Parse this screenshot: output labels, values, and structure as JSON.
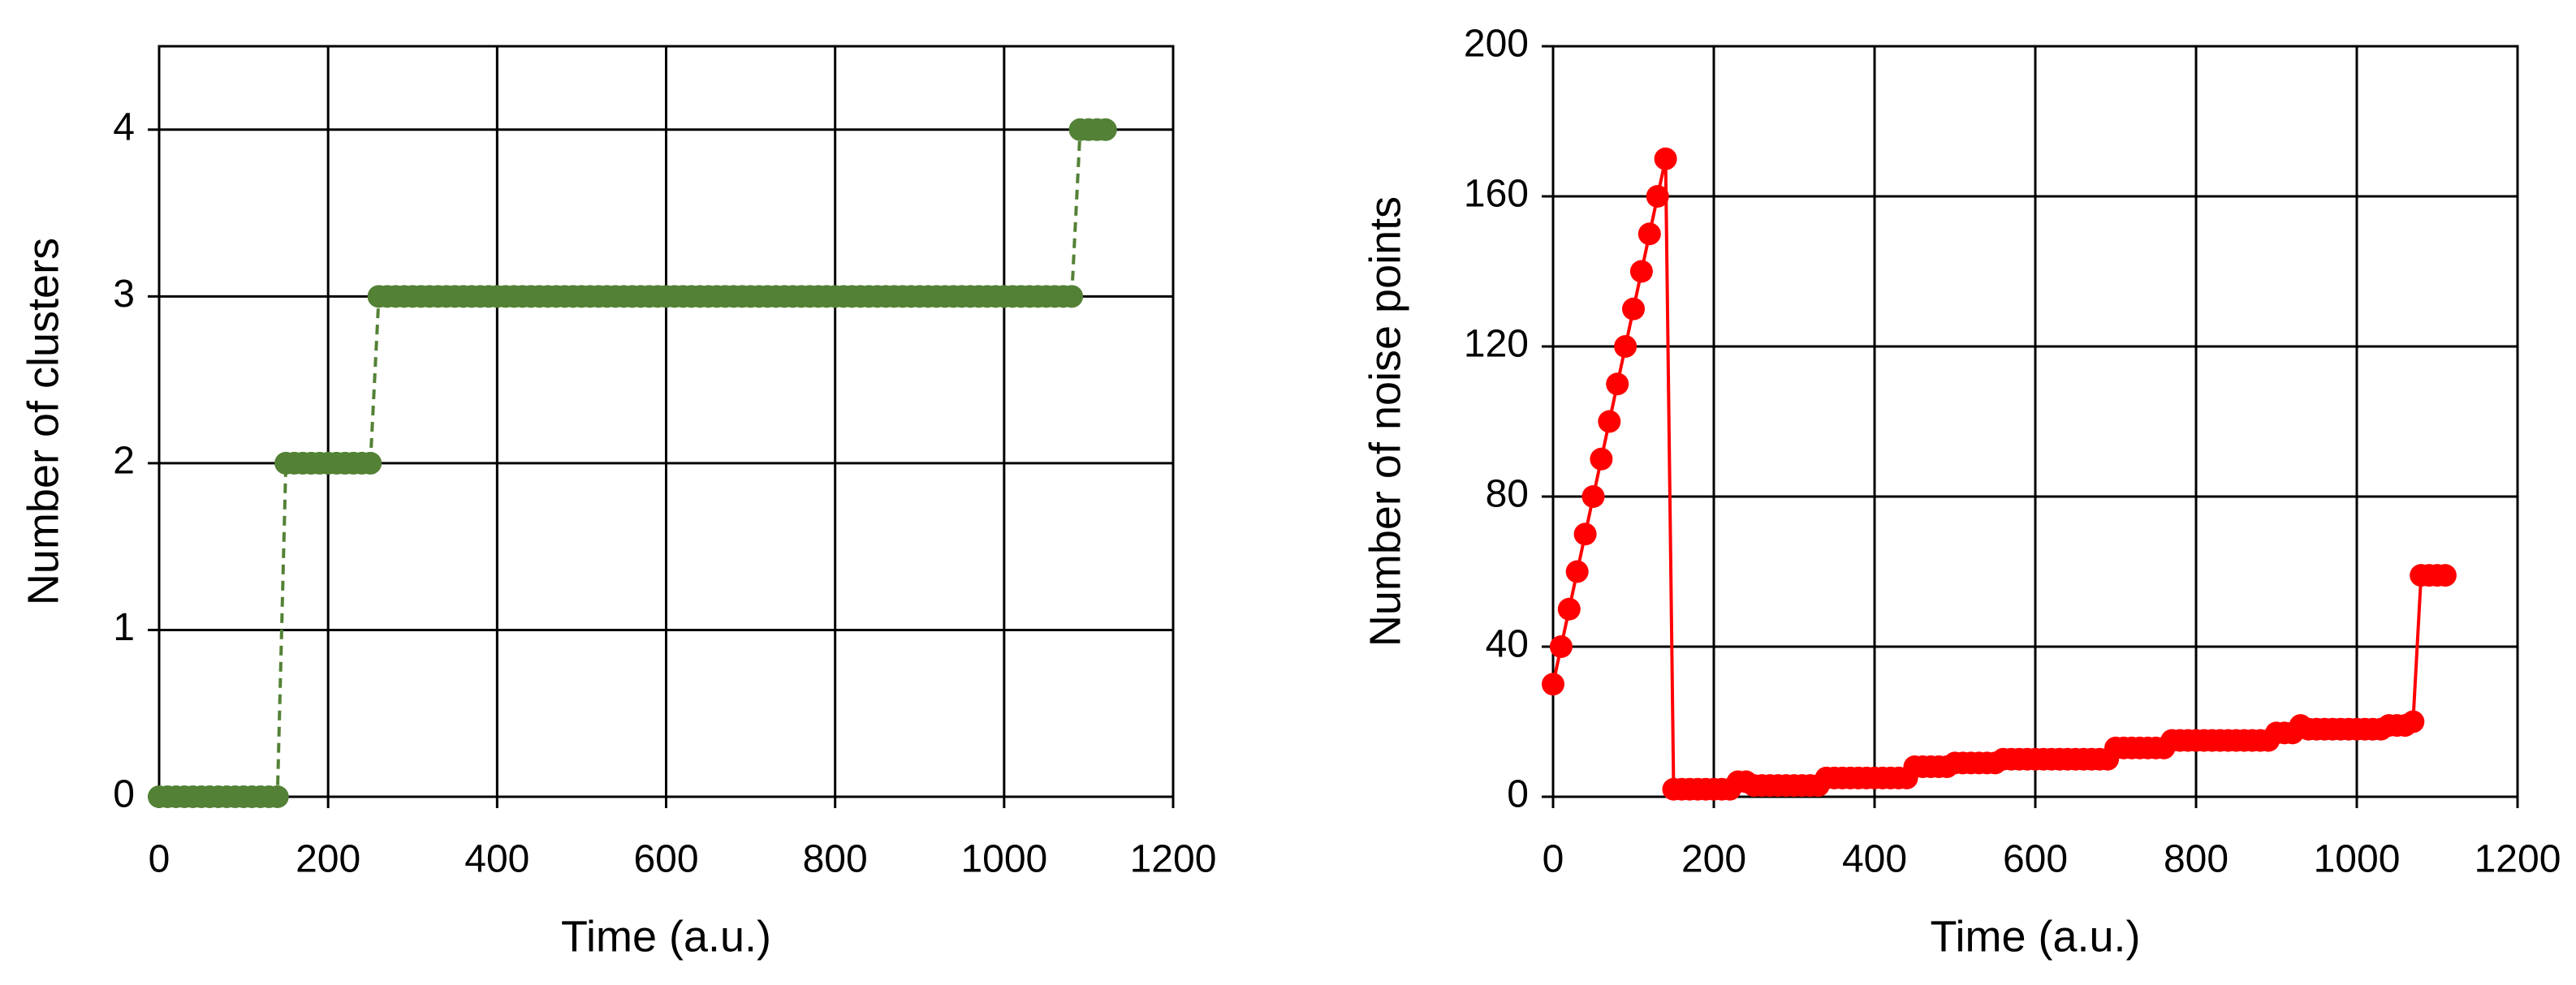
{
  "chart_data": [
    {
      "type": "line",
      "x_label": "Time (a.u.)",
      "y_label": "Number of clusters",
      "color": "#538135",
      "line_style": "dashed",
      "grid": true,
      "xlim": [
        0,
        1200
      ],
      "xticks": [
        0,
        200,
        400,
        600,
        800,
        1000,
        1200
      ],
      "ylim": [
        0,
        4.5
      ],
      "yticks": [
        0,
        1,
        2,
        3,
        4
      ],
      "x": [
        0,
        10,
        20,
        30,
        40,
        50,
        60,
        70,
        80,
        90,
        100,
        110,
        120,
        130,
        140,
        150,
        160,
        170,
        180,
        190,
        200,
        210,
        220,
        230,
        240,
        250,
        260,
        270,
        280,
        290,
        300,
        310,
        320,
        330,
        340,
        350,
        360,
        370,
        380,
        390,
        400,
        410,
        420,
        430,
        440,
        450,
        460,
        470,
        480,
        490,
        500,
        510,
        520,
        530,
        540,
        550,
        560,
        570,
        580,
        590,
        600,
        610,
        620,
        630,
        640,
        650,
        660,
        670,
        680,
        690,
        700,
        710,
        720,
        730,
        740,
        750,
        760,
        770,
        780,
        790,
        800,
        810,
        820,
        830,
        840,
        850,
        860,
        870,
        880,
        890,
        900,
        910,
        920,
        930,
        940,
        950,
        960,
        970,
        980,
        990,
        1000,
        1010,
        1020,
        1030,
        1040,
        1050,
        1060,
        1070,
        1080,
        1090,
        1100,
        1110,
        1120
      ],
      "values": [
        0,
        0,
        0,
        0,
        0,
        0,
        0,
        0,
        0,
        0,
        0,
        0,
        0,
        0,
        0,
        2,
        2,
        2,
        2,
        2,
        2,
        2,
        2,
        2,
        2,
        2,
        3,
        3,
        3,
        3,
        3,
        3,
        3,
        3,
        3,
        3,
        3,
        3,
        3,
        3,
        3,
        3,
        3,
        3,
        3,
        3,
        3,
        3,
        3,
        3,
        3,
        3,
        3,
        3,
        3,
        3,
        3,
        3,
        3,
        3,
        3,
        3,
        3,
        3,
        3,
        3,
        3,
        3,
        3,
        3,
        3,
        3,
        3,
        3,
        3,
        3,
        3,
        3,
        3,
        3,
        3,
        3,
        3,
        3,
        3,
        3,
        3,
        3,
        3,
        3,
        3,
        3,
        3,
        3,
        3,
        3,
        3,
        3,
        3,
        3,
        3,
        3,
        3,
        3,
        3,
        3,
        3,
        3,
        3,
        4,
        4,
        4,
        4
      ]
    },
    {
      "type": "line",
      "x_label": "Time (a.u.)",
      "y_label": "Number of noise points",
      "color": "#ff0000",
      "line_style": "solid",
      "grid": true,
      "xlim": [
        0,
        1200
      ],
      "xticks": [
        0,
        200,
        400,
        600,
        800,
        1000,
        1200
      ],
      "ylim": [
        0,
        200
      ],
      "yticks": [
        0,
        40,
        80,
        120,
        160,
        200
      ],
      "x": [
        0,
        10,
        20,
        30,
        40,
        50,
        60,
        70,
        80,
        90,
        100,
        110,
        120,
        130,
        140,
        150,
        160,
        170,
        180,
        190,
        200,
        210,
        220,
        230,
        240,
        250,
        260,
        270,
        280,
        290,
        300,
        310,
        320,
        330,
        340,
        350,
        360,
        370,
        380,
        390,
        400,
        410,
        420,
        430,
        440,
        450,
        460,
        470,
        480,
        490,
        500,
        510,
        520,
        530,
        540,
        550,
        560,
        570,
        580,
        590,
        600,
        610,
        620,
        630,
        640,
        650,
        660,
        670,
        680,
        690,
        700,
        710,
        720,
        730,
        740,
        750,
        760,
        770,
        780,
        790,
        800,
        810,
        820,
        830,
        840,
        850,
        860,
        870,
        880,
        890,
        900,
        910,
        920,
        930,
        940,
        950,
        960,
        970,
        980,
        990,
        1000,
        1010,
        1020,
        1030,
        1040,
        1050,
        1060,
        1070,
        1080,
        1090,
        1100,
        1110
      ],
      "values": [
        30,
        40,
        50,
        60,
        70,
        80,
        90,
        100,
        110,
        120,
        130,
        140,
        150,
        160,
        170,
        2,
        2,
        2,
        2,
        2,
        2,
        2,
        2,
        4,
        4,
        3,
        3,
        3,
        3,
        3,
        3,
        3,
        3,
        3,
        5,
        5,
        5,
        5,
        5,
        5,
        5,
        5,
        5,
        5,
        5,
        8,
        8,
        8,
        8,
        8,
        9,
        9,
        9,
        9,
        9,
        9,
        10,
        10,
        10,
        10,
        10,
        10,
        10,
        10,
        10,
        10,
        10,
        10,
        10,
        10,
        13,
        13,
        13,
        13,
        13,
        13,
        13,
        15,
        15,
        15,
        15,
        15,
        15,
        15,
        15,
        15,
        15,
        15,
        15,
        15,
        17,
        17,
        17,
        19,
        18,
        18,
        18,
        18,
        18,
        18,
        18,
        18,
        18,
        18,
        19,
        19,
        19,
        20,
        59,
        59,
        59,
        59
      ]
    }
  ]
}
